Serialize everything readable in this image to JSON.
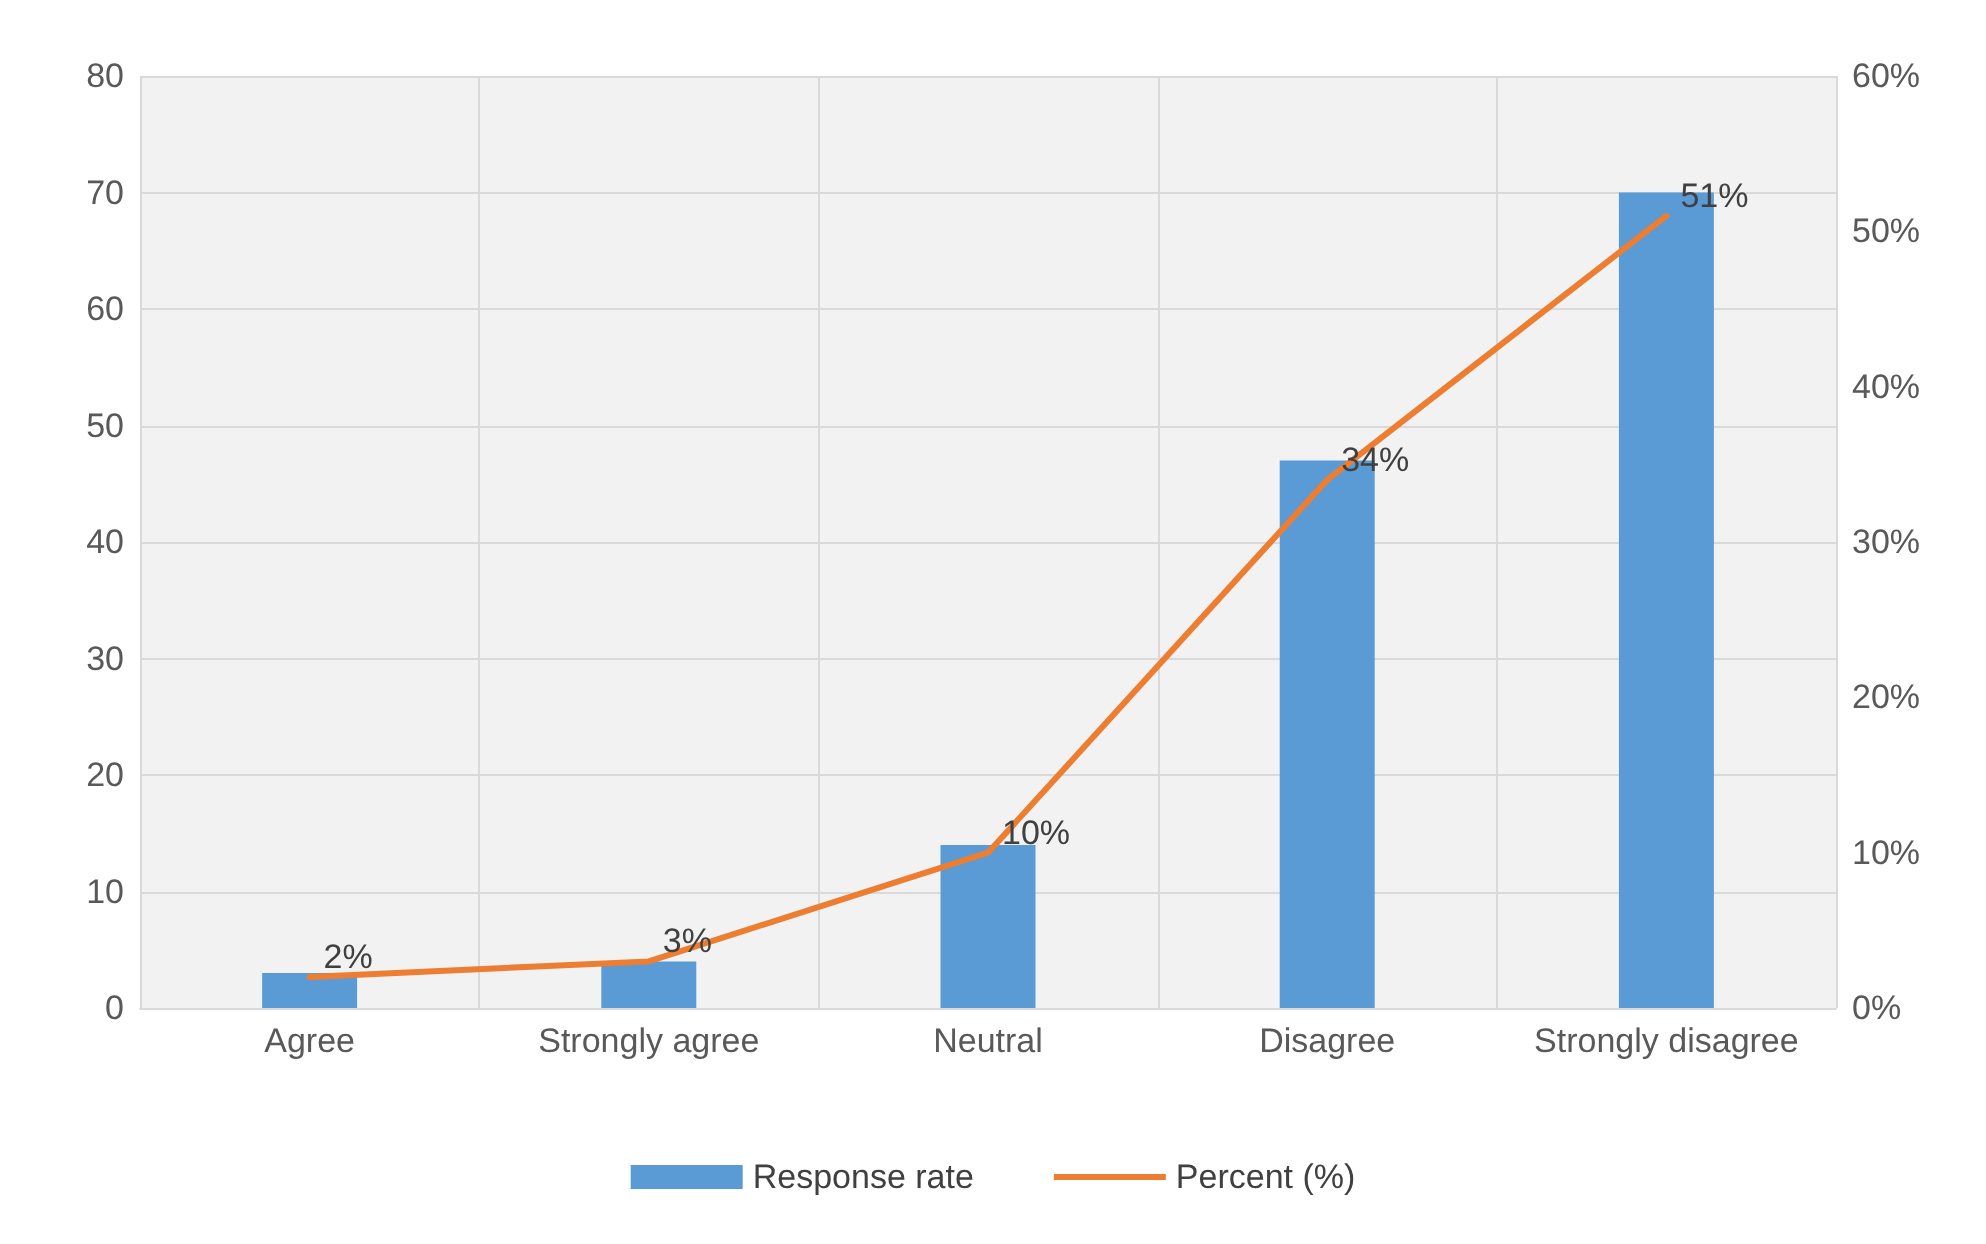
{
  "chart_data": {
    "type": "bar",
    "categories": [
      "Agree",
      "Strongly agree",
      "Neutral",
      "Disagree",
      "Strongly disagree"
    ],
    "series": [
      {
        "name": "Response rate",
        "color": "#5b9bd5",
        "values": [
          3,
          4,
          14,
          47,
          70
        ]
      },
      {
        "name": "Percent (%)",
        "type": "line",
        "axis": "y2",
        "color": "#ed7d31",
        "values": [
          2,
          3,
          10,
          34,
          51
        ],
        "value_labels": [
          "2%",
          "3%",
          "10%",
          "34%",
          "51%"
        ]
      }
    ],
    "ylim": [
      0,
      80
    ],
    "yticks": [
      0,
      10,
      20,
      30,
      40,
      50,
      60,
      70,
      80
    ],
    "y2lim": [
      0,
      60
    ],
    "y2ticks": [
      {
        "value": 0,
        "label": "0%"
      },
      {
        "value": 10,
        "label": "10%"
      },
      {
        "value": 20,
        "label": "20%"
      },
      {
        "value": 30,
        "label": "30%"
      },
      {
        "value": 40,
        "label": "40%"
      },
      {
        "value": 50,
        "label": "50%"
      },
      {
        "value": 60,
        "label": "60%"
      }
    ],
    "grid": true,
    "legend": "bottom",
    "marker": "none",
    "line_style": "solid"
  }
}
